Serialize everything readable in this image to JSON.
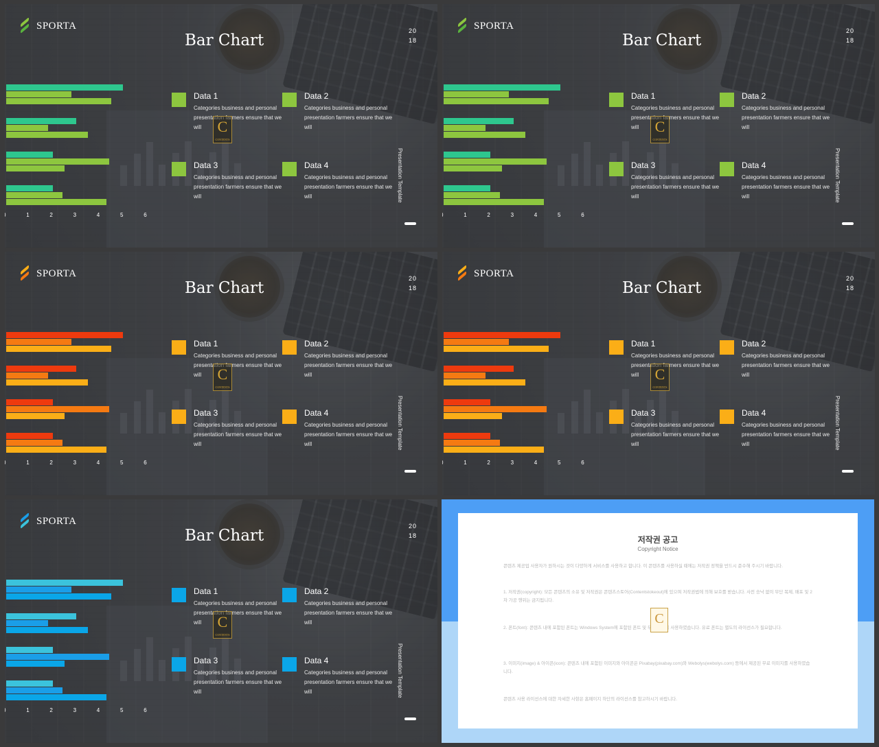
{
  "slides": [
    {
      "variant": "green",
      "logo": "SPORTA",
      "title": "Bar Chart",
      "year_top": "20",
      "year_bottom": "18",
      "side_text": "Presentation Template",
      "color_light": "#2ec78e",
      "color_mid": "#8dc63f",
      "color_dark": "#8dc63f",
      "square_color": "#8dc63f",
      "logo_colors": [
        "#8dc63f",
        "#5ab33e"
      ]
    },
    {
      "variant": "green",
      "logo": "SPORTA",
      "title": "Bar Chart",
      "year_top": "20",
      "year_bottom": "18",
      "side_text": "Presentation Template",
      "color_light": "#2ec78e",
      "color_mid": "#8dc63f",
      "color_dark": "#8dc63f",
      "square_color": "#8dc63f",
      "logo_colors": [
        "#8dc63f",
        "#5ab33e"
      ]
    },
    {
      "variant": "orange",
      "logo": "SPORTA",
      "title": "Bar Chart",
      "year_top": "20",
      "year_bottom": "18",
      "side_text": "Presentation Template",
      "color_light": "#ee3a0e",
      "color_mid": "#f57a12",
      "color_dark": "#fbae17",
      "square_color": "#fbae17",
      "logo_colors": [
        "#fbae17",
        "#f57a12"
      ]
    },
    {
      "variant": "orange",
      "logo": "SPORTA",
      "title": "Bar Chart",
      "year_top": "20",
      "year_bottom": "18",
      "side_text": "Presentation Template",
      "color_light": "#ee3a0e",
      "color_mid": "#f57a12",
      "color_dark": "#fbae17",
      "square_color": "#fbae17",
      "logo_colors": [
        "#fbae17",
        "#f57a12"
      ]
    },
    {
      "variant": "blue",
      "logo": "SPORTA",
      "title": "Bar Chart",
      "year_top": "20",
      "year_bottom": "18",
      "side_text": "Presentation Template",
      "color_light": "#3bc3dc",
      "color_mid": "#1a9ee8",
      "color_dark": "#0aa6e8",
      "square_color": "#0aa6e8",
      "logo_colors": [
        "#1a9ee8",
        "#3bc3dc"
      ]
    }
  ],
  "data_items": [
    {
      "name": "Data 1",
      "desc": "Categories business and personal presentation farmers ensure that we will"
    },
    {
      "name": "Data 2",
      "desc": "Categories business and personal presentation farmers ensure that we will"
    },
    {
      "name": "Data 3",
      "desc": "Categories business and personal presentation farmers ensure that we will"
    },
    {
      "name": "Data 4",
      "desc": "Categories business and personal presentation farmers ensure that we will"
    }
  ],
  "chart_data": {
    "type": "bar",
    "orientation": "horizontal",
    "x_ticks": [
      "0",
      "1",
      "2",
      "3",
      "4",
      "5",
      "6"
    ],
    "xlim": [
      0,
      6
    ],
    "groups": [
      {
        "values": [
          5.0,
          2.8,
          4.5
        ]
      },
      {
        "values": [
          3.0,
          1.8,
          3.5
        ]
      },
      {
        "values": [
          2.0,
          4.4,
          2.5
        ]
      },
      {
        "values": [
          2.0,
          2.4,
          4.3
        ]
      }
    ]
  },
  "copyright": {
    "title": "저작권 공고",
    "subtitle": "Copyright Notice",
    "paragraphs": [
      "콘텐츠 제공업 사용자가 원하시는 것이 다양하게 서비스를 사용하고 합니다. 이 콘텐츠를 사용하실 때에는 저작권 정책을 반드시 준수해 주시기 바랍니다.",
      "1. 저작권(copyright): 모든 콘텐츠의 소유 및 저작권은 콘텐츠스토어(Contentstokeout)에 있으며 저작권법에 의해 보호를 받습니다. 사전 승낙 없이 무단 복제, 배포 및 2차 가공 행위는 금지됩니다.",
      "2. 폰트(font): 콘텐츠 내에 포함된 폰트는 Windows System에 포함된 폰트 및 무료 폰트를 사용하였습니다. 유료 폰트는 별도의 라이선스가 필요합니다.",
      "3. 이미지(image) & 아이콘(icon): 콘텐츠 내에 포함된 이미지와 아이콘은 Pixabay(pixabay.com)와 Webolys(webolys.com) 등에서 제공된 무료 이미지를 사용하였습니다.",
      "콘텐츠 사용 라이선스에 대한 자세한 사항은 홈페이지 하단의 라이선스를 참고하시기 바랍니다."
    ]
  }
}
